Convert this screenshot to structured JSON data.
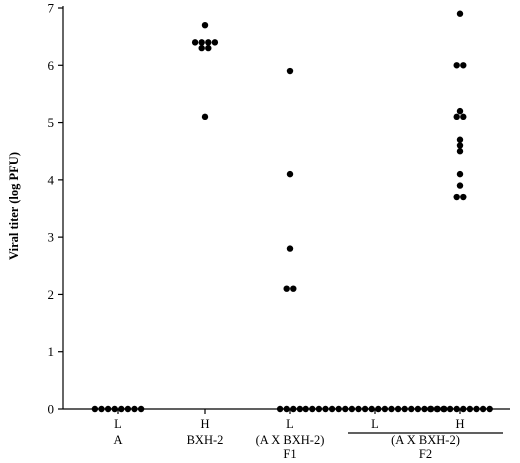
{
  "chart_data": {
    "type": "scatter",
    "title": "",
    "xlabel": "",
    "ylabel": "Viral titer (log PFU)",
    "ylim": [
      0,
      7
    ],
    "yticks": [
      "0",
      "1",
      "2",
      "3",
      "4",
      "5",
      "6",
      "7"
    ],
    "grid": false,
    "groups": [
      {
        "phenotype": "L",
        "strain": [
          "A"
        ],
        "values": [
          0,
          0,
          0,
          0,
          0,
          0,
          0,
          0
        ]
      },
      {
        "phenotype": "H",
        "strain": [
          "BXH-2"
        ],
        "values": [
          6.7,
          6.4,
          6.4,
          6.4,
          6.4,
          6.3,
          6.3,
          5.1
        ]
      },
      {
        "phenotype": "L",
        "strain": [
          "(A X BXH-2)",
          "F1"
        ],
        "values": [
          5.9,
          4.1,
          2.8,
          2.1,
          2.1,
          0,
          0,
          0,
          0
        ]
      },
      {
        "phenotype": "L",
        "strain": [],
        "values": [
          0,
          0,
          0,
          0,
          0,
          0,
          0,
          0,
          0,
          0,
          0,
          0,
          0,
          0,
          0,
          0,
          0,
          0,
          0,
          0,
          0,
          0
        ]
      },
      {
        "phenotype": "H",
        "strain": [],
        "values": [
          6.9,
          6.0,
          6.0,
          5.2,
          5.1,
          5.1,
          4.7,
          4.6,
          4.5,
          4.1,
          3.9,
          3.7,
          3.7,
          0,
          0,
          0,
          0,
          0,
          0,
          0,
          0,
          0,
          0
        ]
      }
    ],
    "bracket_labels": [
      "(A X BXH-2)",
      "F2"
    ]
  }
}
